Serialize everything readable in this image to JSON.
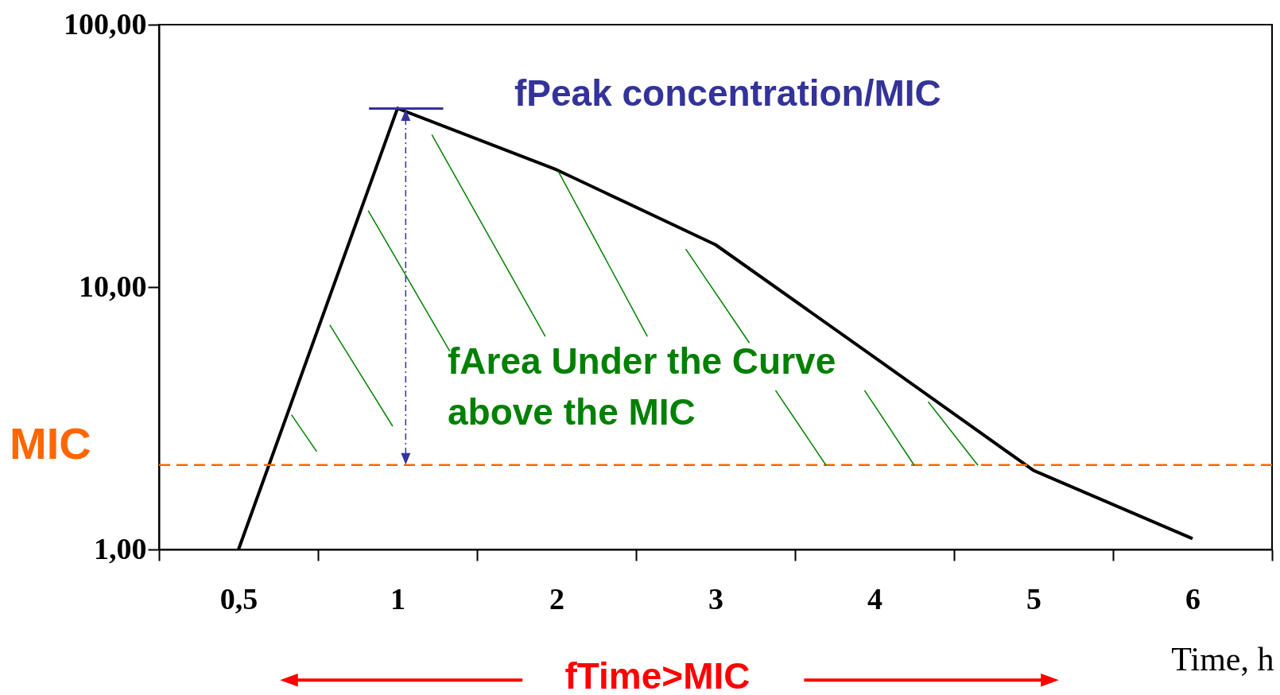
{
  "chart_data": {
    "type": "line",
    "xlabel": "Time, h",
    "categories": [
      "0,5",
      "1",
      "2",
      "3",
      "4",
      "5",
      "6"
    ],
    "series": [
      {
        "color": "#000000",
        "values": [
          1.0,
          48,
          28,
          14.5,
          5.4,
          2.0,
          1.1
        ]
      }
    ],
    "ylim": [
      1,
      100
    ],
    "yticks": [
      {
        "value": 1,
        "label": "1,00"
      },
      {
        "value": 10,
        "label": "10,00"
      },
      {
        "value": 100,
        "label": "100,00"
      }
    ],
    "log": true,
    "grid": false,
    "marker": "none",
    "line_style": "solid",
    "ref_lines": [
      {
        "axis": "y",
        "value": 2.1,
        "label": "MIC",
        "color": "#ff6600",
        "line_style": "dashed"
      }
    ],
    "annotations": [
      "fPeak concentration/MIC",
      {
        "text": "fArea Under the Curve\nabove the MIC",
        "x": "2",
        "y": 28
      },
      "fTime>MIC"
    ]
  }
}
